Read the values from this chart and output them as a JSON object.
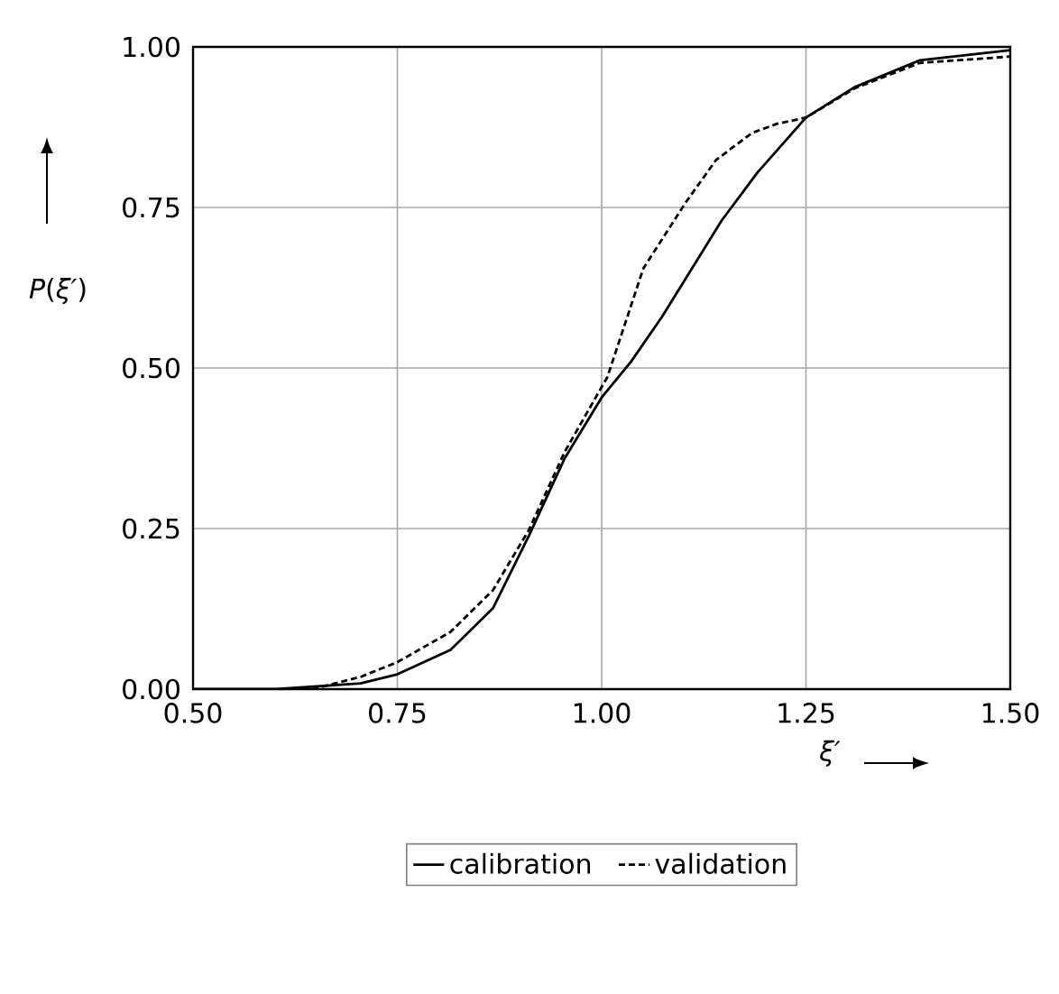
{
  "chart_data": {
    "type": "line",
    "xlabel": "*ξ′*",
    "ylabel": "*P*(*ξ′*)",
    "xlim": [
      0.5,
      1.5
    ],
    "xticks": [
      {
        "value": 0.5,
        "label": "0.50"
      },
      {
        "value": 0.75,
        "label": "0.75"
      },
      {
        "value": 1.0,
        "label": "1.00"
      },
      {
        "value": 1.25,
        "label": "1.25"
      },
      {
        "value": 1.5,
        "label": "1.50"
      }
    ],
    "ylim": [
      0,
      1
    ],
    "yticks": [
      {
        "value": 0,
        "label": "0.00"
      },
      {
        "value": 0.25,
        "label": "0.25"
      },
      {
        "value": 0.5,
        "label": "0.50"
      },
      {
        "value": 0.75,
        "label": "0.75"
      },
      {
        "value": 1.0,
        "label": "1.00"
      }
    ],
    "grid": true,
    "legend": "bottom",
    "marker": "none",
    "series": [
      {
        "name": "calibration",
        "color": "#000000",
        "line_style": "solid",
        "x": [
          0.5,
          0.602,
          0.705,
          0.75,
          0.815,
          0.867,
          0.911,
          0.955,
          1.0,
          1.036,
          1.074,
          1.147,
          1.191,
          1.25,
          1.309,
          1.389,
          1.5
        ],
        "values": [
          0,
          0,
          0.009,
          0.023,
          0.061,
          0.126,
          0.239,
          0.36,
          0.454,
          0.51,
          0.58,
          0.73,
          0.805,
          0.89,
          0.937,
          0.979,
          0.995
        ]
      },
      {
        "name": "validation",
        "color": "#000000",
        "line_style": "dashed",
        "x": [
          0.646,
          0.705,
          0.75,
          0.815,
          0.867,
          0.911,
          0.955,
          1.007,
          1.051,
          1.103,
          1.14,
          1.184,
          1.214,
          1.25,
          1.309,
          1.389,
          1.5
        ],
        "values": [
          0,
          0.019,
          0.042,
          0.089,
          0.154,
          0.248,
          0.37,
          0.486,
          0.655,
          0.758,
          0.824,
          0.866,
          0.88,
          0.89,
          0.935,
          0.975,
          0.985
        ]
      }
    ]
  }
}
